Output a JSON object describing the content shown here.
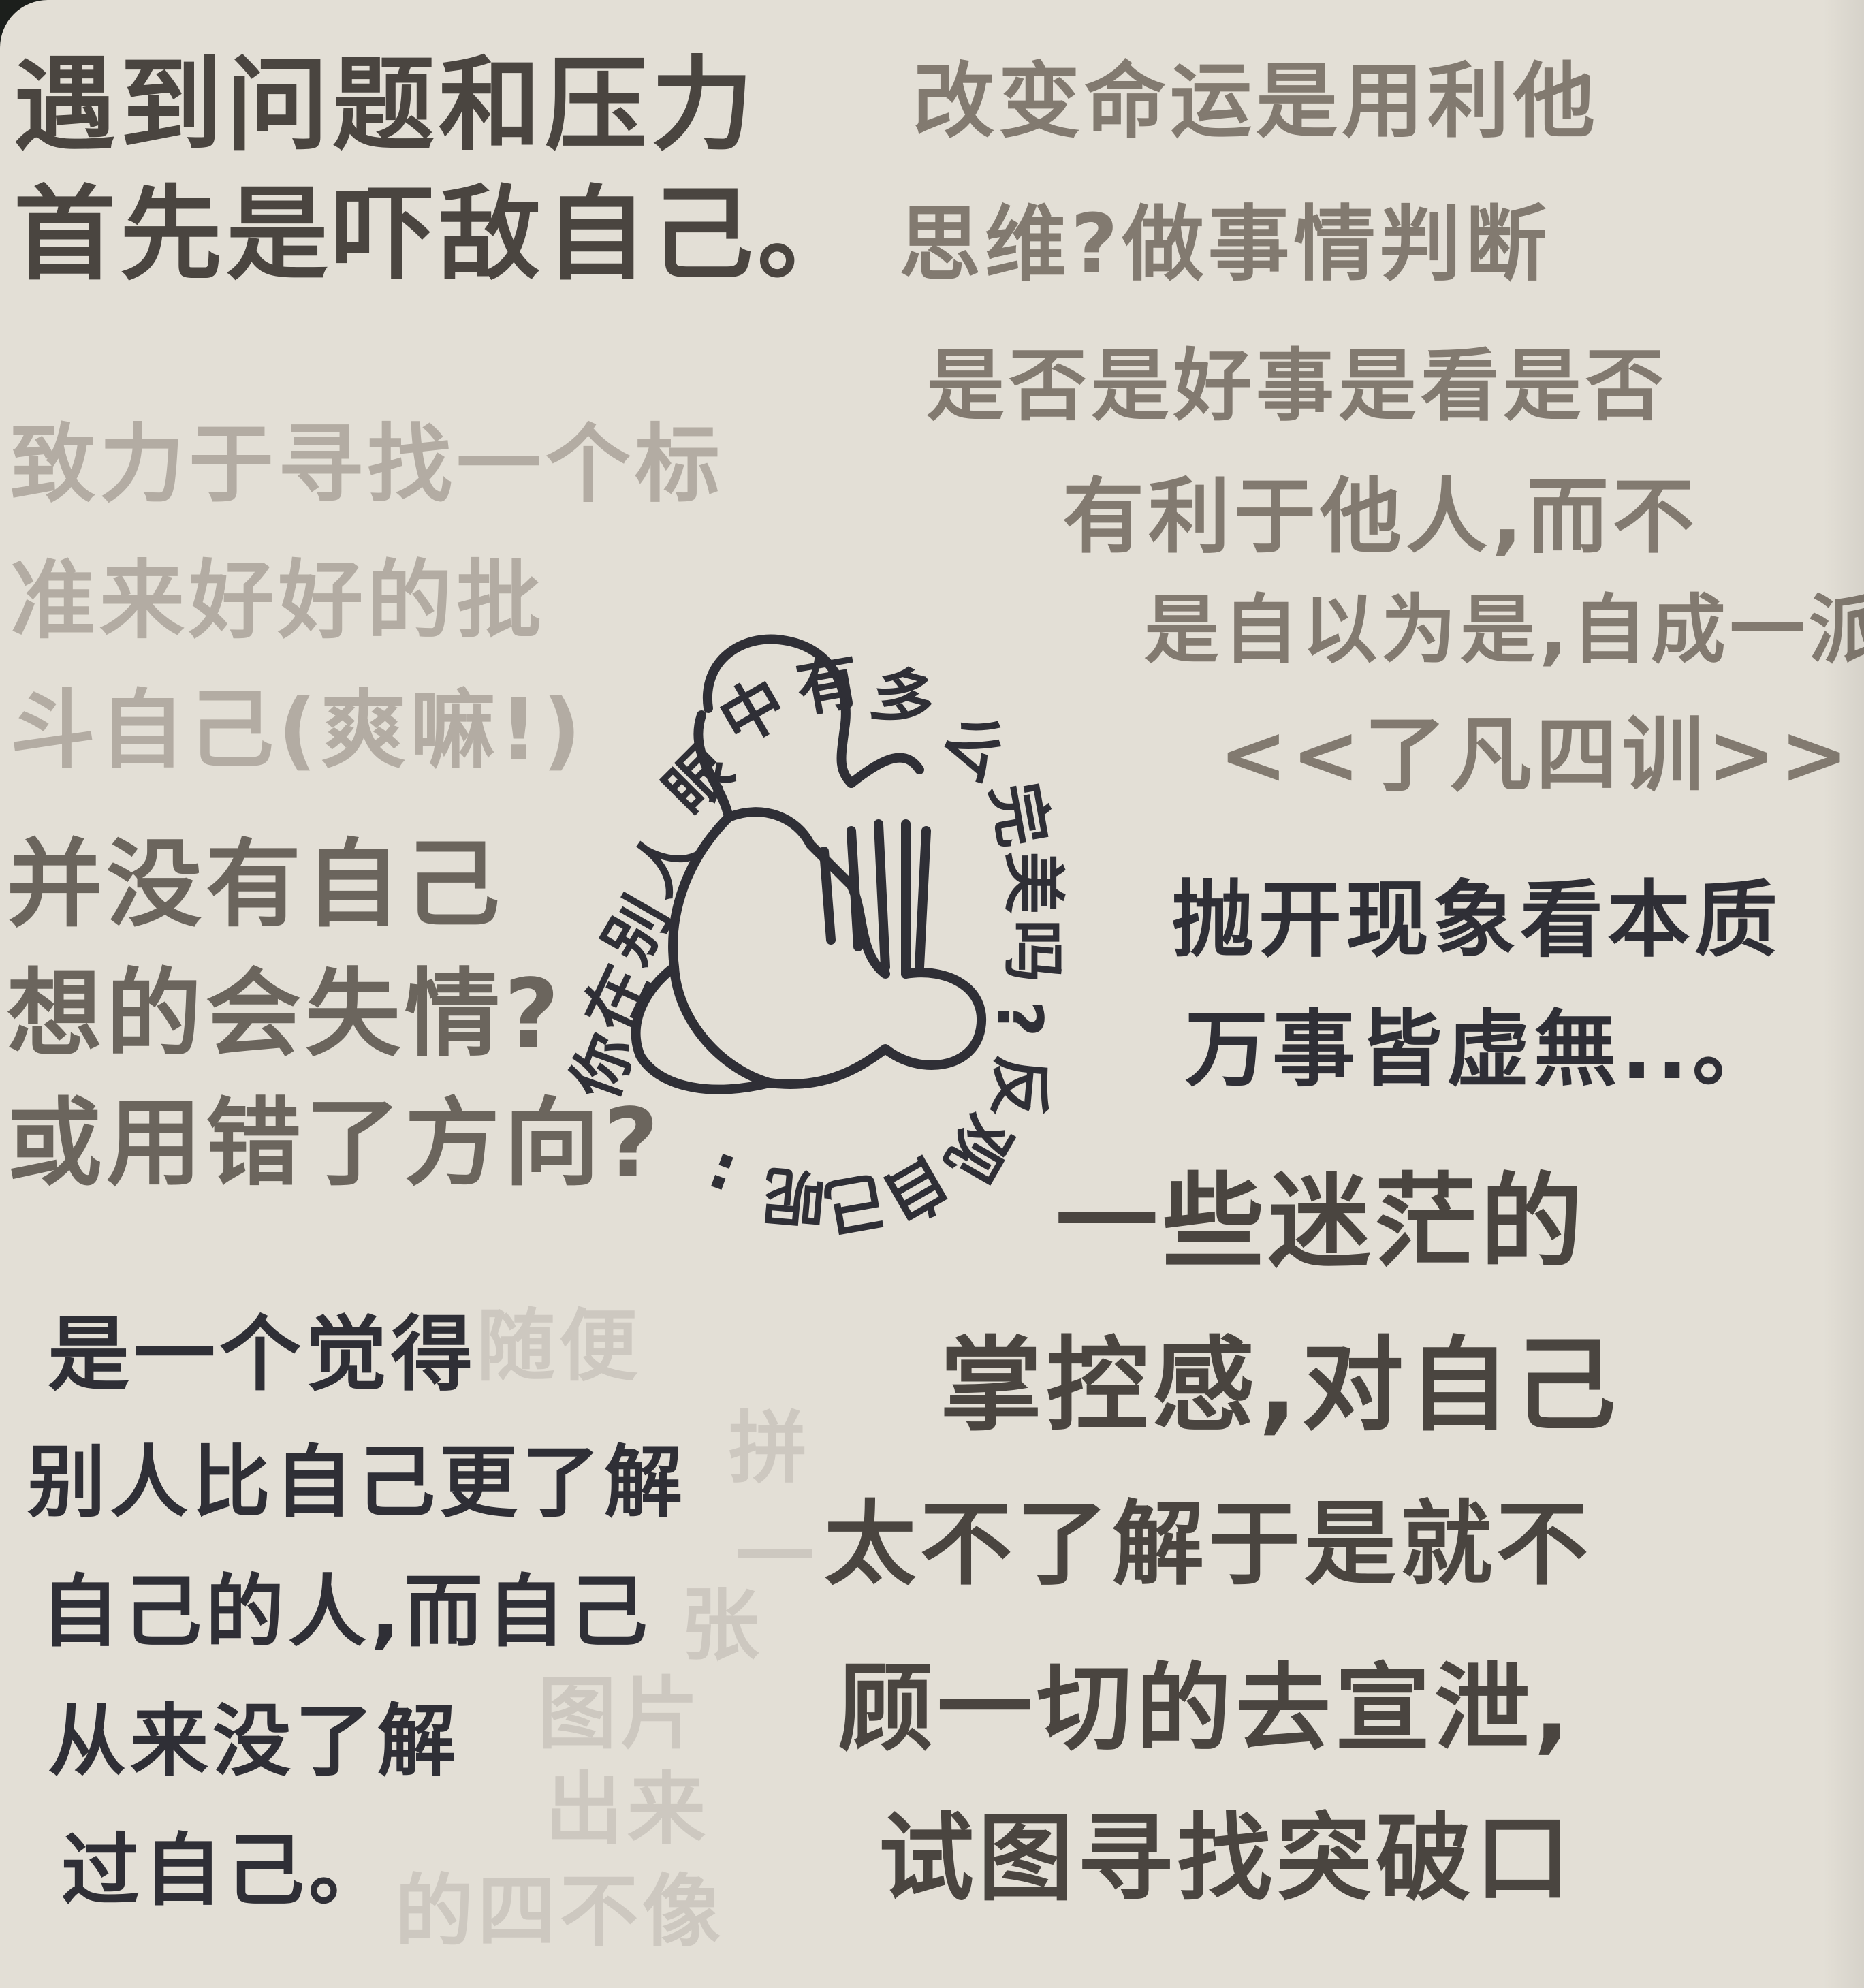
{
  "left_top": [
    "遇到问题和压力",
    "首先是吓敌自己。"
  ],
  "left_faint": [
    "致力于寻找一个标",
    "准来好好的批",
    "斗自己(爽嘛!)"
  ],
  "left_question": [
    "并没有自己",
    "想的会失情?",
    "或用错了方向?"
  ],
  "bottom_left": [
    "是一个觉得",
    "别人比自己更了解",
    "自己的人,而自己",
    "从来没了解",
    "过自己。"
  ],
  "bottom_faint": [
    "随便",
    "拼",
    "一",
    "张",
    "图片",
    "出来",
    "的四不像"
  ],
  "right_top": [
    "改变命运是用利他",
    "思维?做事情判断",
    "是否是好事是看是否",
    "有利于他人,而不",
    "是自以为是,自成一派",
    "<<了凡四训>>"
  ],
  "right_middle": [
    "抛开现象看本质",
    "万事皆虚無..。"
  ],
  "right_bottom": [
    "一些迷茫的",
    "掌控感,对自己",
    "太不了解于是就不",
    "顾一切的去宣泄,",
    "试图寻找突破口"
  ],
  "figure_ring": [
    "你",
    "在",
    "别",
    "人",
    "眼",
    "中",
    "有",
    "多",
    "么",
    "完",
    "美",
    "吗",
    "?",
    "反",
    "观",
    "自",
    "己",
    "呢",
    ":"
  ]
}
